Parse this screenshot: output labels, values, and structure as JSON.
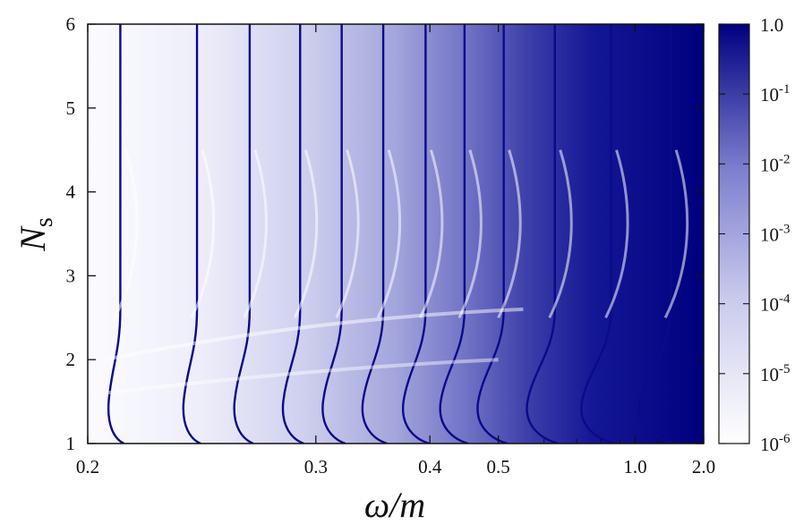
{
  "chart_data": {
    "type": "heatmap",
    "title": "",
    "xlabel": {
      "main": "ω/m"
    },
    "ylabel": {
      "main": "N",
      "sub": "s"
    },
    "x_scale": "reciprocal",
    "xlim": [
      0.2,
      2.0
    ],
    "ylim": [
      1,
      6
    ],
    "x_ticks": [
      {
        "value": 0.2,
        "label": "0.2"
      },
      {
        "value": 0.3,
        "label": "0.3"
      },
      {
        "value": 0.4,
        "label": "0.4"
      },
      {
        "value": 0.5,
        "label": "0.5"
      },
      {
        "value": 1.0,
        "label": "1.0"
      },
      {
        "value": 2.0,
        "label": "2.0"
      }
    ],
    "y_ticks": [
      {
        "value": 1,
        "label": "1"
      },
      {
        "value": 2,
        "label": "2"
      },
      {
        "value": 3,
        "label": "3"
      },
      {
        "value": 4,
        "label": "4"
      },
      {
        "value": 5,
        "label": "5"
      },
      {
        "value": 6,
        "label": "6"
      }
    ],
    "colorbar": {
      "scale": "log",
      "range": [
        1e-06,
        1.0
      ],
      "color_low": "#ffffff",
      "color_high": "#00007f",
      "ticks": [
        {
          "value": 1.0,
          "base": "1.0",
          "exp": ""
        },
        {
          "value": 0.1,
          "base": "10",
          "exp": "-1"
        },
        {
          "value": 0.01,
          "base": "10",
          "exp": "-2"
        },
        {
          "value": 0.001,
          "base": "10",
          "exp": "-3"
        },
        {
          "value": 0.0001,
          "base": "10",
          "exp": "-4"
        },
        {
          "value": 1e-05,
          "base": "10",
          "exp": "-5"
        },
        {
          "value": 1e-06,
          "base": "10",
          "exp": "-6"
        }
      ]
    },
    "resonance_lines_omega": [
      0.21,
      0.238,
      0.262,
      0.29,
      0.318,
      0.352,
      0.395,
      0.445,
      0.51,
      0.63,
      0.85,
      1.35
    ]
  }
}
